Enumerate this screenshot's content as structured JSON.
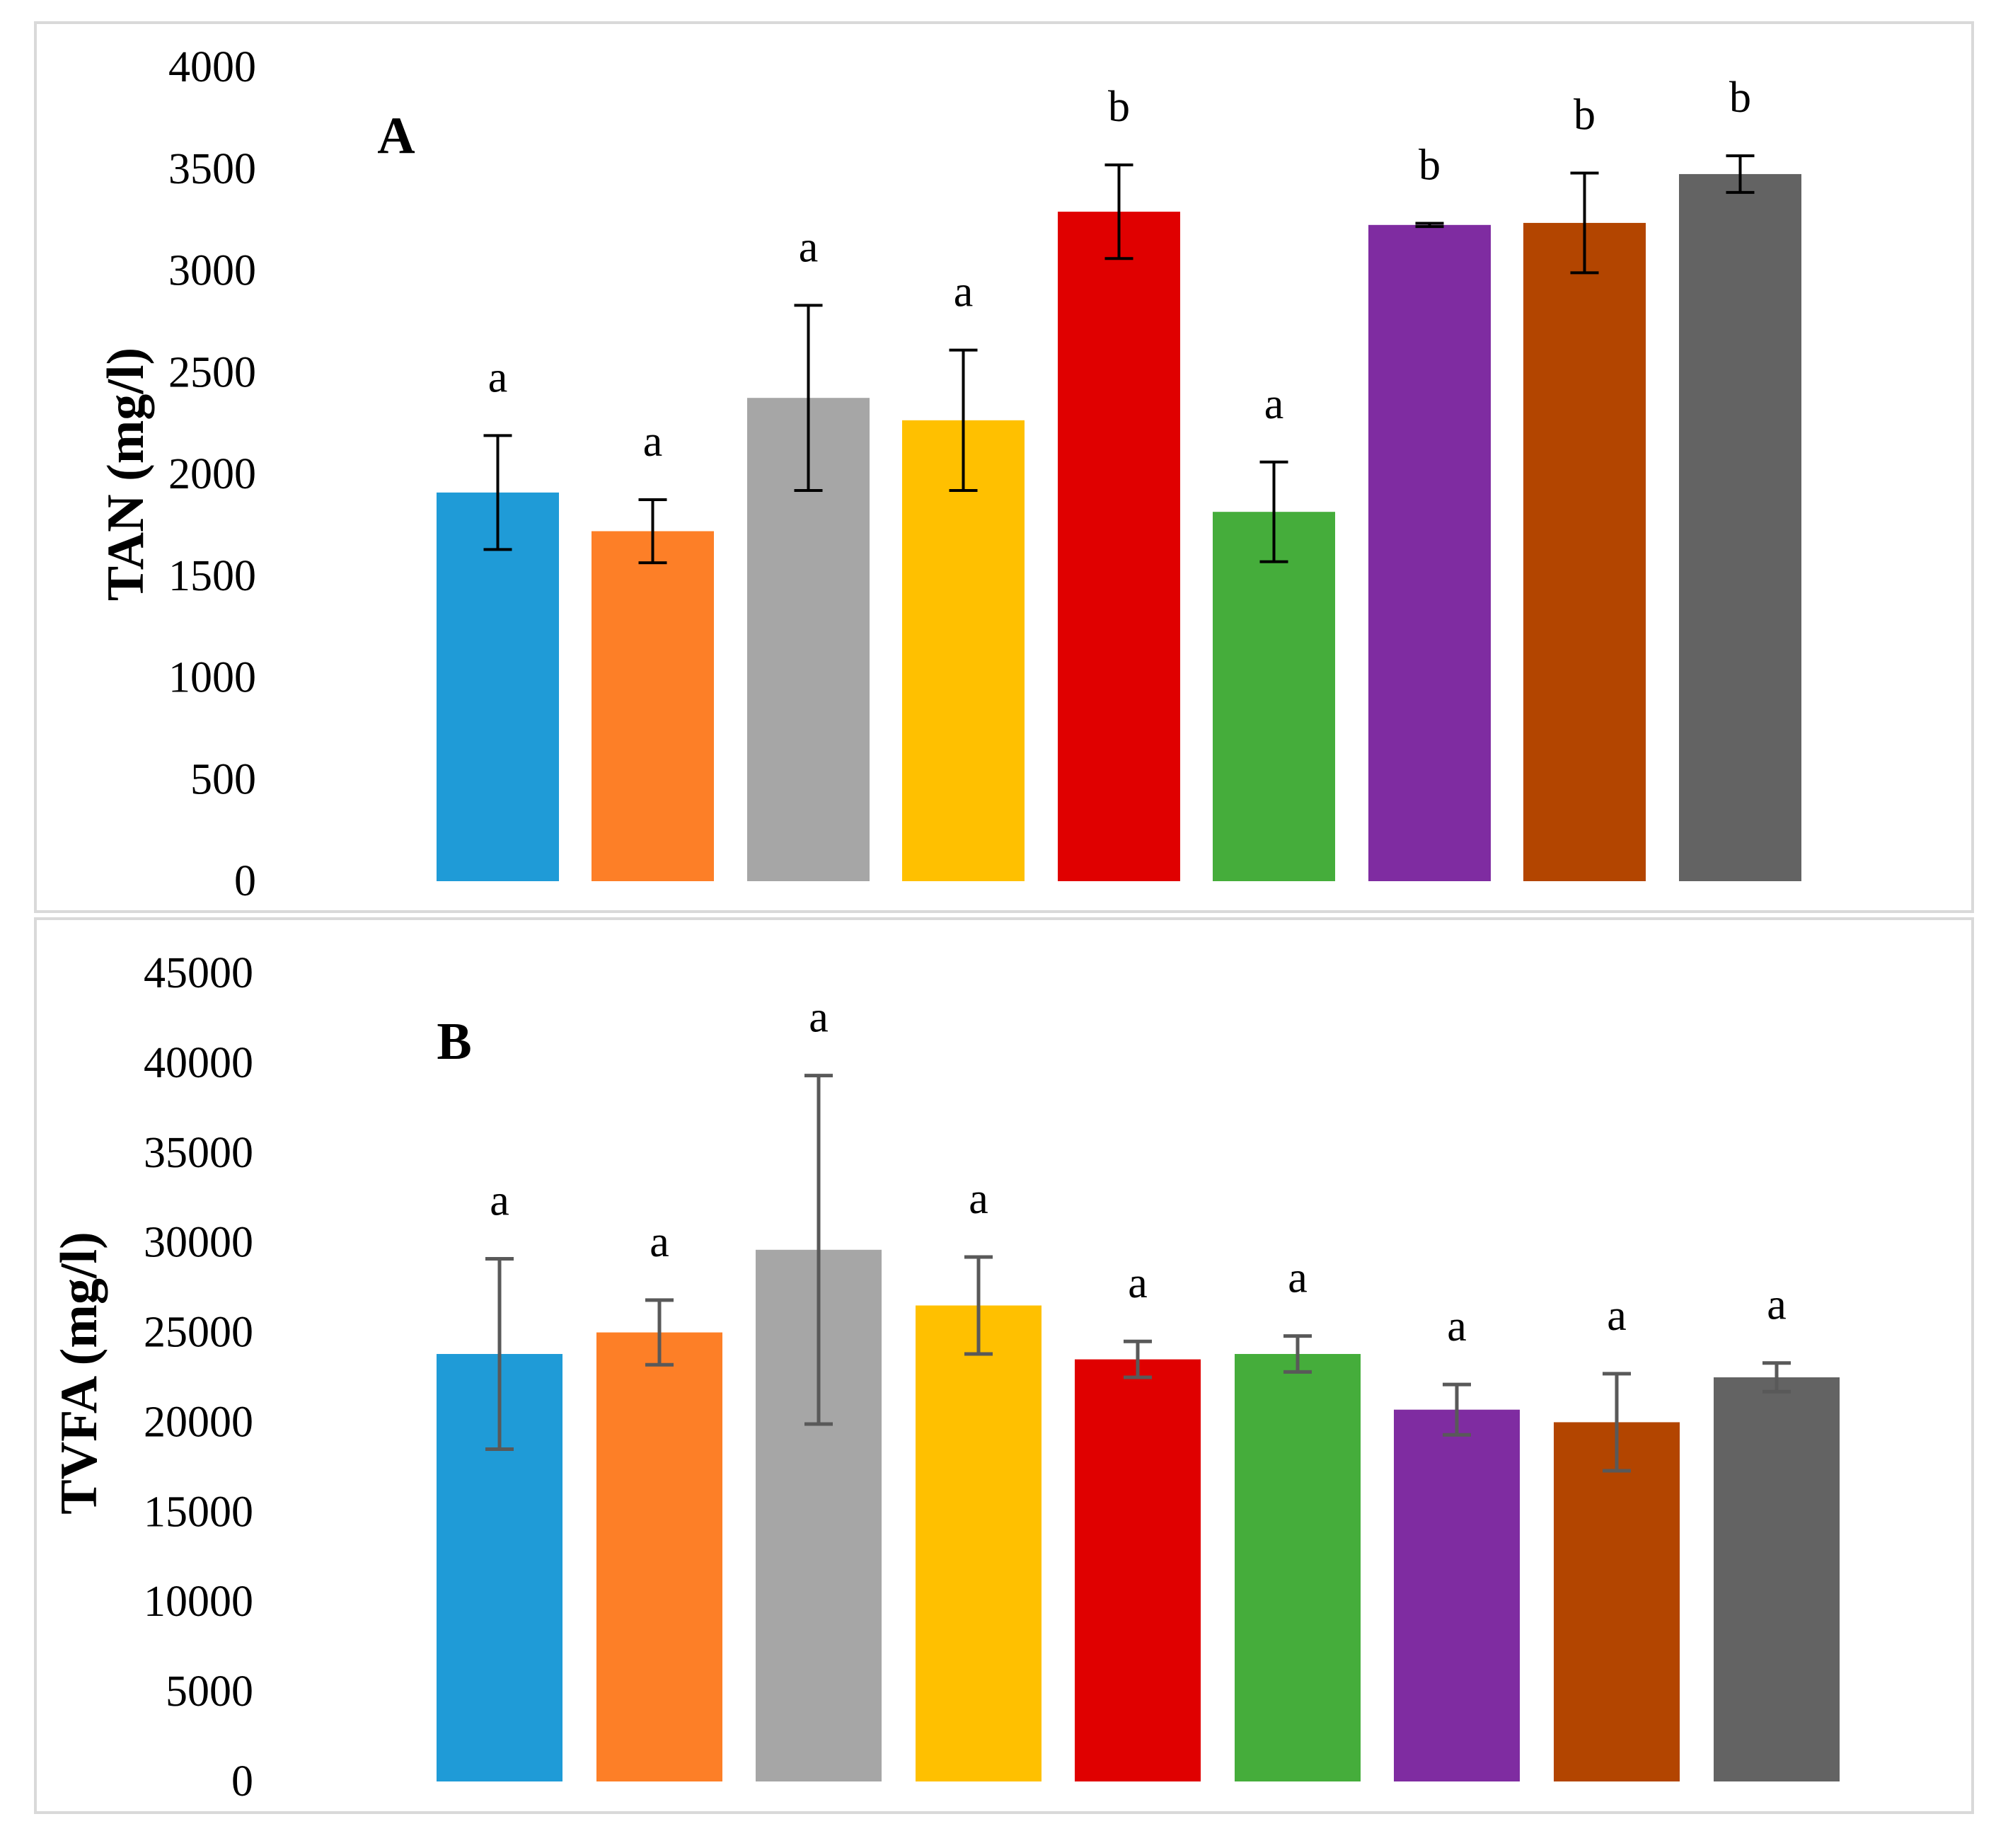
{
  "colors": [
    "#1f9bd7",
    "#fd7f27",
    "#a6a6a6",
    "#ffc000",
    "#e00000",
    "#45ad3b",
    "#7f2ca1",
    "#b34500",
    "#636363"
  ],
  "chart_data": [
    {
      "type": "bar",
      "panel_letter": "A",
      "ylabel": "TAN (mg/l)",
      "ylim": [
        0,
        4000
      ],
      "yticks": [
        0,
        500,
        1000,
        1500,
        2000,
        2500,
        3000,
        3500,
        4000
      ],
      "grid": false,
      "legend": "none",
      "values": [
        1910,
        1720,
        2375,
        2265,
        3290,
        1815,
        3225,
        3235,
        3475
      ],
      "errors": [
        280,
        155,
        455,
        345,
        230,
        245,
        8,
        245,
        90
      ],
      "significance": [
        "a",
        "a",
        "a",
        "a",
        "b",
        "a",
        "b",
        "b",
        "b"
      ],
      "error_bar_color": "#000000"
    },
    {
      "type": "bar",
      "panel_letter": "B",
      "ylabel": "TVFA (mg/l)",
      "ylim": [
        0,
        45000
      ],
      "yticks": [
        0,
        5000,
        10000,
        15000,
        20000,
        25000,
        30000,
        35000,
        40000,
        45000
      ],
      "grid": false,
      "legend": "none",
      "values": [
        23800,
        25000,
        29600,
        26500,
        23500,
        23800,
        20700,
        20000,
        22500
      ],
      "errors": [
        5300,
        1800,
        9700,
        2700,
        1000,
        1000,
        1400,
        2700,
        800
      ],
      "significance": [
        "a",
        "a",
        "a",
        "a",
        "a",
        "a",
        "a",
        "a",
        "a"
      ],
      "error_bar_color": "#595959"
    }
  ]
}
